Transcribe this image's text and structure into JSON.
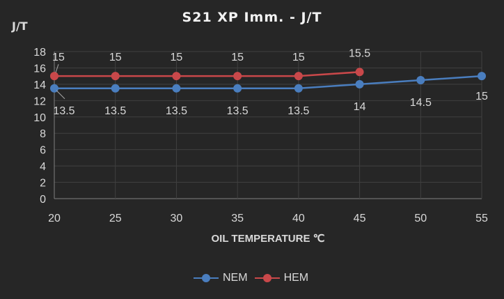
{
  "chart_data": {
    "type": "line",
    "title": "S21 XP Imm. - J/T",
    "xlabel": "OIL TEMPERATURE ℃",
    "ylabel": "J/T",
    "x": [
      20,
      25,
      30,
      35,
      40,
      45,
      50,
      55
    ],
    "x_ticks": [
      "20",
      "25",
      "30",
      "35",
      "40",
      "45",
      "50",
      "55"
    ],
    "y_ticks": [
      "0",
      "2",
      "4",
      "6",
      "8",
      "10",
      "12",
      "14",
      "16",
      "18"
    ],
    "ylim": [
      0,
      18
    ],
    "xlim": [
      20,
      55
    ],
    "grid": true,
    "legend_position": "bottom",
    "series": [
      {
        "name": "NEM",
        "color": "#4a7ebf",
        "values": [
          13.5,
          13.5,
          13.5,
          13.5,
          13.5,
          14,
          14.5,
          15
        ],
        "labels": [
          "13.5",
          "13.5",
          "13.5",
          "13.5",
          "13.5",
          "14",
          "14.5",
          "15"
        ]
      },
      {
        "name": "HEM",
        "color": "#c9484a",
        "values": [
          15,
          15,
          15,
          15,
          15,
          15.5,
          null,
          null
        ],
        "labels": [
          "15",
          "15",
          "15",
          "15",
          "15",
          "15.5"
        ]
      }
    ]
  },
  "legend": {
    "items": [
      {
        "label": "NEM",
        "color": "#4a7ebf"
      },
      {
        "label": "HEM",
        "color": "#c9484a"
      }
    ]
  }
}
